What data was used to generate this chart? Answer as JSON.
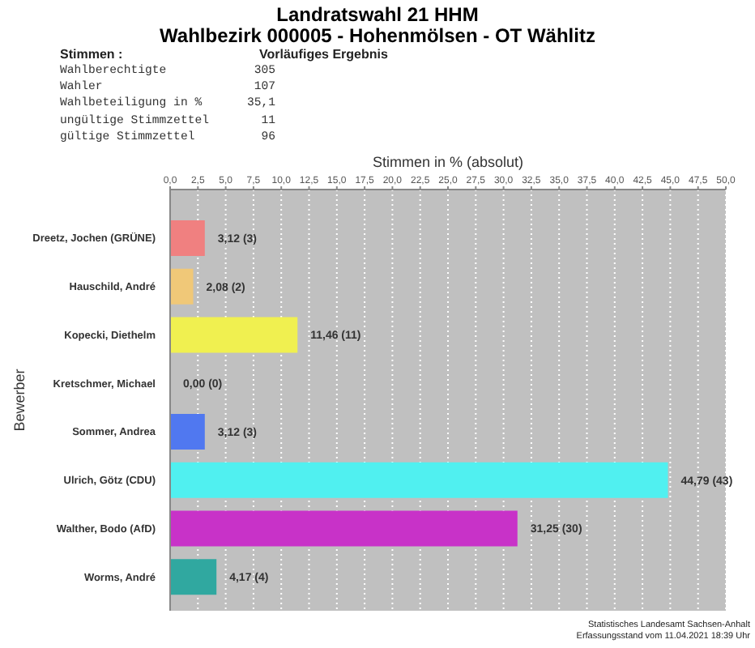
{
  "chart_data": {
    "type": "bar",
    "orientation": "horizontal",
    "title": "Landratswahl 21 HHM",
    "subtitle": "Wahlbezirk 000005 - Hohenmölsen - OT Wählitz",
    "xlabel": "Stimmen in % (absolut)",
    "ylabel": "Bewerber",
    "categories": [
      "Dreetz, Jochen (GRÜNE)",
      "Hauschild, André",
      "Kopecki, Diethelm",
      "Kretschmer, Michael",
      "Sommer, Andrea",
      "Ulrich, Götz (CDU)",
      "Walther, Bodo (AfD)",
      "Worms, André"
    ],
    "values": [
      3.12,
      2.08,
      11.46,
      0,
      3.12,
      44.79,
      31.25,
      4.17
    ],
    "colors": [
      "#f08080",
      "#f0c878",
      "#f0f050",
      null,
      "#5078f0",
      "#50f0f0",
      "#c832c8",
      "#30a8a0"
    ],
    "value_labels": [
      "3,12 (3)",
      "2,08 (2)",
      "11,46 (11)",
      "0,00 (0)",
      "3,12 (3)",
      "44,79 (43)",
      "31,25 (30)",
      "4,17 (4)"
    ],
    "xlim": [
      0,
      50
    ],
    "xticks": [
      {
        "value": 0,
        "label": "0,0"
      },
      {
        "value": 2.5,
        "label": "2,5"
      },
      {
        "value": 5,
        "label": "5,0"
      },
      {
        "value": 7.5,
        "label": "7,5"
      },
      {
        "value": 10,
        "label": "10,0"
      },
      {
        "value": 12.5,
        "label": "12,5"
      },
      {
        "value": 15,
        "label": "15,0"
      },
      {
        "value": 17.5,
        "label": "17,5"
      },
      {
        "value": 20,
        "label": "20,0"
      },
      {
        "value": 22.5,
        "label": "22,5"
      },
      {
        "value": 25,
        "label": "25,0"
      },
      {
        "value": 27.5,
        "label": "27,5"
      },
      {
        "value": 30,
        "label": "30,0"
      },
      {
        "value": 32.5,
        "label": "32,5"
      },
      {
        "value": 35,
        "label": "35,0"
      },
      {
        "value": 37.5,
        "label": "37,5"
      },
      {
        "value": 40,
        "label": "40,0"
      },
      {
        "value": 42.5,
        "label": "42,5"
      },
      {
        "value": 45,
        "label": "45,0"
      },
      {
        "value": 47.5,
        "label": "47,5"
      },
      {
        "value": 50,
        "label": "50,0"
      }
    ],
    "grid": "x",
    "annotations": [
      "Stimmen :",
      "Vorläufiges Ergebnis",
      "Wahlberechtigte",
      "305",
      "Wahler",
      "107",
      "Wahlbeteiligung in %",
      "35,1",
      "ungültige Stimmzettel",
      "11",
      "gültige Stimmzettel",
      "96",
      "Statistisches Landesamt Sachsen-Anhalt",
      "Erfassungsstand vom 11.04.2021 18:39 Uhr"
    ]
  }
}
